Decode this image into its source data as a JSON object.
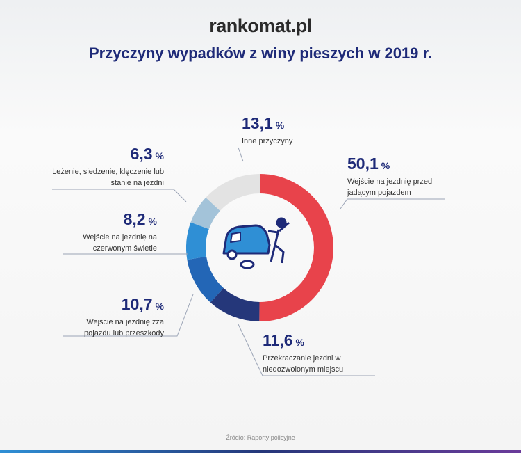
{
  "logo": "rankomat.pl",
  "chart_data": {
    "type": "pie",
    "donut": true,
    "title": "Przyczyny wypadków z winy pieszych w 2019 r.",
    "categories": [
      "Wejście na jezdnię przed jadącym pojazdem",
      "Przekraczanie jezdni w niedozwolonym miejscu",
      "Wejście na jezdnię zza pojazdu lub przeszkody",
      "Wejście na jezdnię na czerwonym świetle",
      "Leżenie, siedzenie, klęczenie lub stanie na jezdni",
      "Inne przyczyny"
    ],
    "values": [
      50.1,
      11.6,
      10.7,
      8.2,
      6.3,
      13.1
    ],
    "value_labels": [
      "50,1",
      "11,6",
      "10,7",
      "8,2",
      "6,3",
      "13,1"
    ],
    "unit": "%",
    "colors": [
      "#e8434b",
      "#25377a",
      "#2366b6",
      "#2f8fd5",
      "#a3c3d9",
      "#e3e3e3"
    ]
  },
  "source": "Źródło: Raporty policyjne"
}
